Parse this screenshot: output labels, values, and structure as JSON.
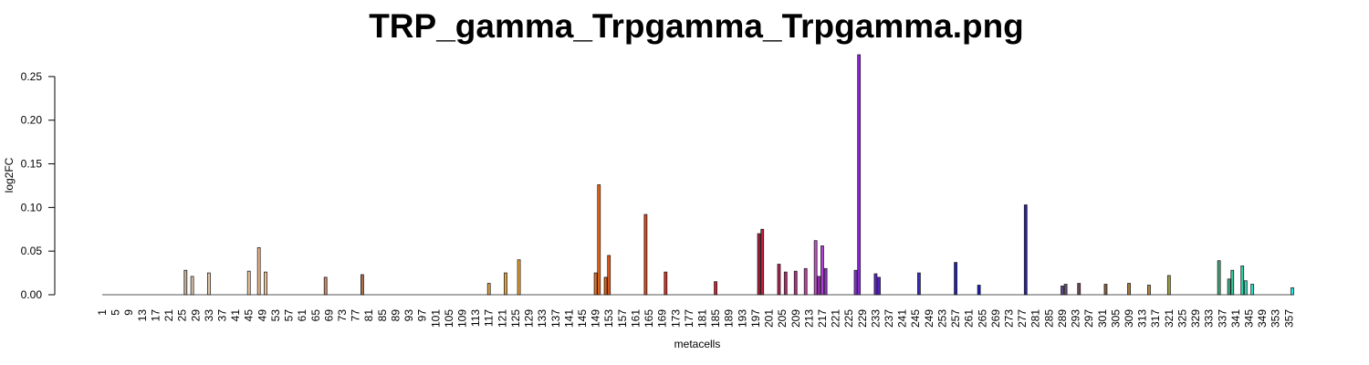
{
  "chart_data": {
    "type": "bar",
    "title": "TRP_gamma_Trpgamma_Trpgamma.png",
    "xlabel": "metacells",
    "ylabel": "log2FC",
    "x_min": 1,
    "x_max": 358,
    "ylim": [
      0,
      0.275
    ],
    "yticks": [
      0.0,
      0.05,
      0.1,
      0.15,
      0.2,
      0.25
    ],
    "ytick_labels": [
      "0.00",
      "0.05",
      "0.10",
      "0.15",
      "0.20",
      "0.25"
    ],
    "xtick_labels": [
      "1",
      "5",
      "9",
      "13",
      "17",
      "21",
      "25",
      "29",
      "33",
      "37",
      "41",
      "45",
      "49",
      "53",
      "57",
      "61",
      "65",
      "69",
      "73",
      "77",
      "81",
      "85",
      "89",
      "93",
      "97",
      "101",
      "105",
      "109",
      "113",
      "117",
      "121",
      "125",
      "129",
      "133",
      "137",
      "141",
      "145",
      "149",
      "153",
      "157",
      "161",
      "165",
      "169",
      "173",
      "177",
      "181",
      "185",
      "189",
      "193",
      "197",
      "201",
      "205",
      "209",
      "213",
      "217",
      "221",
      "225",
      "229",
      "233",
      "237",
      "241",
      "245",
      "249",
      "253",
      "257",
      "261",
      "265",
      "269",
      "273",
      "277",
      "281",
      "285",
      "289",
      "293",
      "297",
      "301",
      "305",
      "309",
      "313",
      "317",
      "321",
      "325",
      "329",
      "333",
      "337",
      "341",
      "345",
      "349",
      "353",
      "357"
    ],
    "grid": false,
    "legend": "none",
    "bars": [
      {
        "x": 26,
        "value": 0.028,
        "color": "#c9b29b"
      },
      {
        "x": 28,
        "value": 0.021,
        "color": "#d8c4ac"
      },
      {
        "x": 33,
        "value": 0.025,
        "color": "#e6c7a8"
      },
      {
        "x": 45,
        "value": 0.027,
        "color": "#f4c99e"
      },
      {
        "x": 48,
        "value": 0.054,
        "color": "#f6b98a"
      },
      {
        "x": 50,
        "value": 0.026,
        "color": "#f2c08f"
      },
      {
        "x": 68,
        "value": 0.02,
        "color": "#c88a6a"
      },
      {
        "x": 79,
        "value": 0.023,
        "color": "#a8704a"
      },
      {
        "x": 117,
        "value": 0.013,
        "color": "#e0a040"
      },
      {
        "x": 122,
        "value": 0.025,
        "color": "#e8a030"
      },
      {
        "x": 126,
        "value": 0.04,
        "color": "#f0a028"
      },
      {
        "x": 149,
        "value": 0.025,
        "color": "#f07020"
      },
      {
        "x": 150,
        "value": 0.126,
        "color": "#f06818"
      },
      {
        "x": 152,
        "value": 0.02,
        "color": "#e06010"
      },
      {
        "x": 153,
        "value": 0.045,
        "color": "#e85818"
      },
      {
        "x": 164,
        "value": 0.092,
        "color": "#e04818"
      },
      {
        "x": 170,
        "value": 0.026,
        "color": "#e03020"
      },
      {
        "x": 185,
        "value": 0.015,
        "color": "#e01830"
      },
      {
        "x": 198,
        "value": 0.07,
        "color": "#b01838"
      },
      {
        "x": 199,
        "value": 0.075,
        "color": "#c02040"
      },
      {
        "x": 204,
        "value": 0.035,
        "color": "#b02050"
      },
      {
        "x": 206,
        "value": 0.026,
        "color": "#b02868"
      },
      {
        "x": 209,
        "value": 0.027,
        "color": "#b03080"
      },
      {
        "x": 212,
        "value": 0.03,
        "color": "#c040a0"
      },
      {
        "x": 215,
        "value": 0.062,
        "color": "#c050c8"
      },
      {
        "x": 216,
        "value": 0.021,
        "color": "#a030c0"
      },
      {
        "x": 217,
        "value": 0.056,
        "color": "#b040d0"
      },
      {
        "x": 218,
        "value": 0.03,
        "color": "#9030d0"
      },
      {
        "x": 227,
        "value": 0.028,
        "color": "#8030d8"
      },
      {
        "x": 228,
        "value": 0.275,
        "color": "#8a28d8"
      },
      {
        "x": 233,
        "value": 0.024,
        "color": "#6020c8"
      },
      {
        "x": 234,
        "value": 0.02,
        "color": "#5020c0"
      },
      {
        "x": 246,
        "value": 0.025,
        "color": "#3828c8"
      },
      {
        "x": 257,
        "value": 0.037,
        "color": "#2020c0"
      },
      {
        "x": 264,
        "value": 0.011,
        "color": "#1818c8"
      },
      {
        "x": 278,
        "value": 0.103,
        "color": "#2820a0"
      },
      {
        "x": 289,
        "value": 0.01,
        "color": "#5a4a88"
      },
      {
        "x": 290,
        "value": 0.012,
        "color": "#685070"
      },
      {
        "x": 294,
        "value": 0.013,
        "color": "#704858"
      },
      {
        "x": 302,
        "value": 0.012,
        "color": "#886040"
      },
      {
        "x": 309,
        "value": 0.013,
        "color": "#a87838"
      },
      {
        "x": 315,
        "value": 0.011,
        "color": "#b88838"
      },
      {
        "x": 321,
        "value": 0.022,
        "color": "#a0a040"
      },
      {
        "x": 336,
        "value": 0.039,
        "color": "#40a878"
      },
      {
        "x": 339,
        "value": 0.018,
        "color": "#38b888"
      },
      {
        "x": 340,
        "value": 0.028,
        "color": "#38c898"
      },
      {
        "x": 343,
        "value": 0.033,
        "color": "#30d0a8"
      },
      {
        "x": 344,
        "value": 0.016,
        "color": "#30d8b8"
      },
      {
        "x": 346,
        "value": 0.012,
        "color": "#28e0c8"
      },
      {
        "x": 358,
        "value": 0.008,
        "color": "#20e8e0"
      }
    ]
  }
}
